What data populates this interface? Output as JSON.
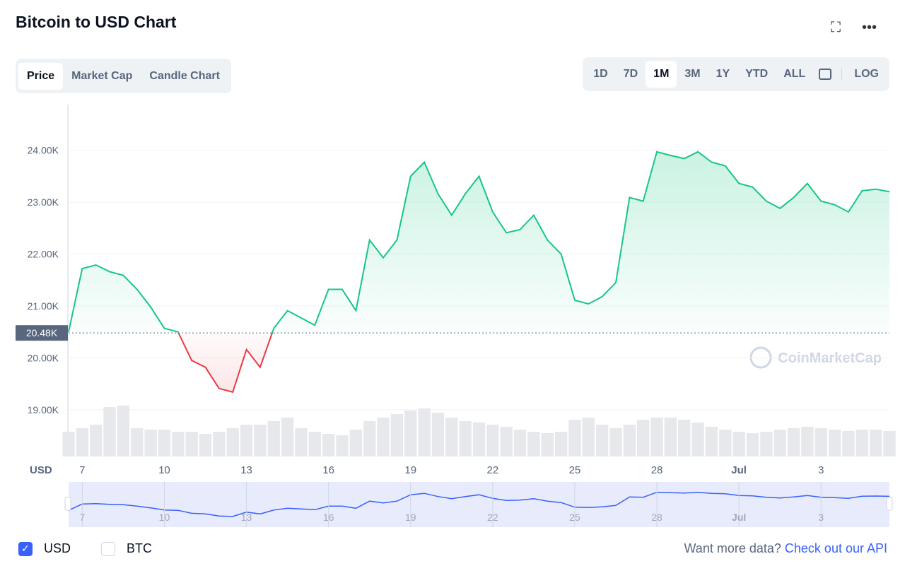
{
  "header": {
    "title": "Bitcoin to USD Chart"
  },
  "tabs": [
    "Price",
    "Market Cap",
    "Candle Chart"
  ],
  "ranges": [
    "1D",
    "7D",
    "1M",
    "3M",
    "1Y",
    "YTD",
    "ALL"
  ],
  "log_button": "LOG",
  "chart_data": {
    "type": "line",
    "axis_label": "USD",
    "watermark": "CoinMarketCap",
    "categories": [
      null,
      "7",
      null,
      null,
      null,
      null,
      null,
      "10",
      null,
      null,
      null,
      null,
      null,
      "13",
      null,
      null,
      null,
      null,
      null,
      "16",
      null,
      null,
      null,
      null,
      null,
      "19",
      null,
      null,
      null,
      null,
      null,
      "22",
      null,
      null,
      null,
      null,
      null,
      "25",
      null,
      null,
      null,
      null,
      null,
      "28",
      null,
      null,
      null,
      null,
      null,
      "Jul",
      null,
      null,
      null,
      null,
      null,
      "3",
      null,
      null,
      null,
      null,
      null
    ],
    "values": [
      20500,
      21720,
      21790,
      21660,
      21590,
      21320,
      20980,
      20570,
      20500,
      19950,
      19820,
      19410,
      19340,
      20160,
      19820,
      20570,
      20910,
      20770,
      20630,
      21320,
      21320,
      20910,
      22270,
      21930,
      22270,
      23500,
      23770,
      23160,
      22750,
      23160,
      23500,
      22810,
      22410,
      22470,
      22750,
      22270,
      22000,
      21110,
      21040,
      21180,
      21450,
      23090,
      23020,
      23970,
      23900,
      23840,
      23970,
      23770,
      23700,
      23360,
      23290,
      23020,
      22880,
      23090,
      23360,
      23020,
      22950,
      22810,
      23220,
      23250,
      23200
    ],
    "volume": [
      35,
      40,
      45,
      70,
      72,
      40,
      38,
      38,
      35,
      35,
      32,
      35,
      40,
      45,
      45,
      50,
      55,
      40,
      35,
      32,
      30,
      38,
      50,
      55,
      60,
      65,
      68,
      62,
      55,
      50,
      48,
      45,
      42,
      38,
      35,
      33,
      35,
      52,
      55,
      45,
      40,
      45,
      52,
      55,
      55,
      52,
      48,
      42,
      38,
      35,
      33,
      35,
      38,
      40,
      42,
      40,
      38,
      36,
      38,
      38,
      36
    ],
    "vlim": [
      0,
      100
    ],
    "ylim": [
      18100,
      24880
    ],
    "yticks": [
      {
        "value": 19000,
        "label": "19.00K"
      },
      {
        "value": 20000,
        "label": "20.00K"
      },
      {
        "value": 21000,
        "label": "21.00K"
      },
      {
        "value": 22000,
        "label": "22.00K"
      },
      {
        "value": 23000,
        "label": "23.00K"
      },
      {
        "value": 24000,
        "label": "24.00K"
      }
    ],
    "baseline": {
      "value": 20480,
      "label": "20.48K"
    },
    "color": "#16c784",
    "negative_color": "#ea3943",
    "navigator_color": "#3861fb",
    "grid": true
  },
  "currencies": [
    "USD",
    "BTC"
  ],
  "footer": {
    "text": "Want more data?",
    "link": "Check out our API"
  }
}
